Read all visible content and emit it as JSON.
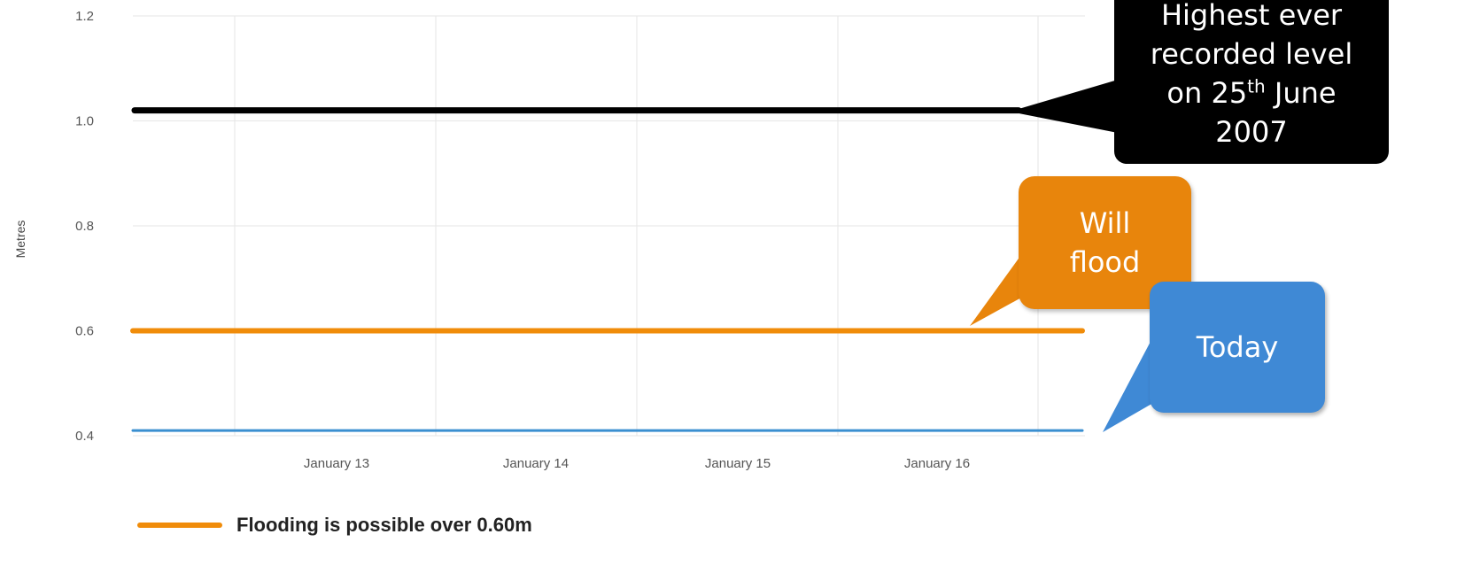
{
  "chart_data": {
    "type": "line",
    "ylabel": "Metres",
    "ylim": [
      0.4,
      1.2
    ],
    "yticks": [
      "0.4",
      "0.6",
      "0.8",
      "1.0",
      "1.2"
    ],
    "xticks": [
      "January 13",
      "January 14",
      "January 15",
      "January 16"
    ],
    "grid": true,
    "series": [
      {
        "name": "Flooding is possible over 0.60m",
        "color": "#f08c0a",
        "x": [
          "January 12",
          "January 16"
        ],
        "values": [
          0.6,
          0.6
        ]
      },
      {
        "color": "#000000",
        "x": [
          "January 12",
          "January 16"
        ],
        "values": [
          1.02,
          1.02
        ]
      },
      {
        "color": "#3a8fd0",
        "x": [
          "January 12",
          "January 16"
        ],
        "values": [
          0.41,
          0.41
        ]
      }
    ],
    "legend_position": "bottom-left"
  },
  "legend": {
    "label": "Flooding is possible over 0.60m",
    "color": "#f08c0a"
  },
  "annotations": {
    "highest": {
      "line1": "Highest ever",
      "line2": "recorded level",
      "line3_pre": "on 25",
      "line3_sup": "th",
      "line3_post": " June",
      "line4": "2007",
      "color": "#000000"
    },
    "will_flood": {
      "line1": "Will",
      "line2": "flood",
      "color": "#e8850c"
    },
    "today": {
      "line1": "Today",
      "color": "#3f89d5"
    }
  }
}
